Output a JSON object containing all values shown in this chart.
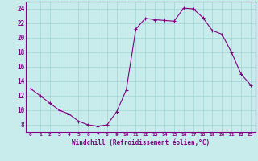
{
  "x": [
    0,
    1,
    2,
    3,
    4,
    5,
    6,
    7,
    8,
    9,
    10,
    11,
    12,
    13,
    14,
    15,
    16,
    17,
    18,
    19,
    20,
    21,
    22,
    23
  ],
  "y": [
    13.0,
    12.0,
    11.0,
    10.0,
    9.5,
    8.5,
    8.0,
    7.8,
    8.0,
    9.8,
    12.8,
    21.2,
    22.7,
    22.5,
    22.4,
    22.3,
    24.1,
    24.0,
    22.8,
    21.0,
    20.5,
    18.0,
    15.0,
    13.5
  ],
  "line_color": "#800080",
  "marker": "+",
  "marker_size": 3,
  "background_color": "#c8ecec",
  "grid_color": "#a0d4d4",
  "xlabel": "Windchill (Refroidissement éolien,°C)",
  "xlabel_color": "#800080",
  "tick_color": "#800080",
  "ylim": [
    7,
    25
  ],
  "xlim": [
    -0.5,
    23.5
  ],
  "yticks": [
    8,
    10,
    12,
    14,
    16,
    18,
    20,
    22,
    24
  ],
  "xticks": [
    0,
    1,
    2,
    3,
    4,
    5,
    6,
    7,
    8,
    9,
    10,
    11,
    12,
    13,
    14,
    15,
    16,
    17,
    18,
    19,
    20,
    21,
    22,
    23
  ],
  "xtick_labels": [
    "0",
    "1",
    "2",
    "3",
    "4",
    "5",
    "6",
    "7",
    "8",
    "9",
    "10",
    "11",
    "12",
    "13",
    "14",
    "15",
    "16",
    "17",
    "18",
    "19",
    "20",
    "21",
    "22",
    "23"
  ]
}
